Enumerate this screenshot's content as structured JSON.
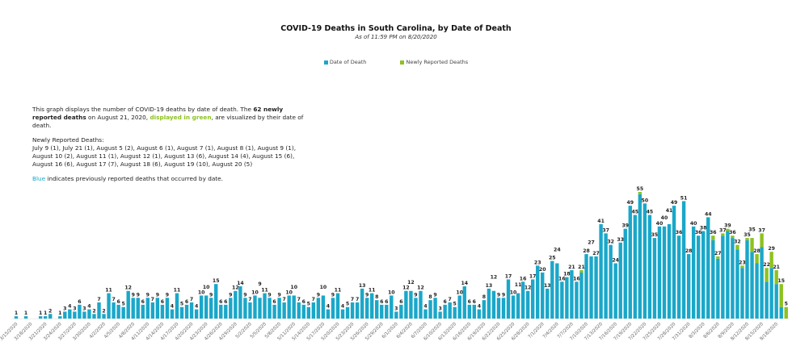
{
  "chart_data": {
    "type": "bar",
    "stacked": true,
    "title": "COVID-19 Deaths in South Carolina, by Date of Death",
    "subtitle": "As of 11:59 PM on 8/20/2020",
    "legend_position": "top",
    "grid": false,
    "ylim": [
      0,
      60
    ],
    "colors": {
      "Date of Death": "#1aa7c9",
      "Newly Reported Deaths": "#8dc21f"
    },
    "categories": [
      "3/15/2020",
      "3/16/2020",
      "3/17/2020",
      "3/18/2020",
      "3/19/2020",
      "3/20/2020",
      "3/21/2020",
      "3/22/2020",
      "3/23/2020",
      "3/24/2020",
      "3/25/2020",
      "3/26/2020",
      "3/27/2020",
      "3/28/2020",
      "3/29/2020",
      "3/30/2020",
      "3/31/2020",
      "4/1/2020",
      "4/2/2020",
      "4/3/2020",
      "4/4/2020",
      "4/5/2020",
      "4/6/2020",
      "4/7/2020",
      "4/8/2020",
      "4/9/2020",
      "4/10/2020",
      "4/11/2020",
      "4/12/2020",
      "4/13/2020",
      "4/14/2020",
      "4/15/2020",
      "4/16/2020",
      "4/17/2020",
      "4/18/2020",
      "4/19/2020",
      "4/20/2020",
      "4/21/2020",
      "4/22/2020",
      "4/23/2020",
      "4/24/2020",
      "4/25/2020",
      "4/26/2020",
      "4/27/2020",
      "4/28/2020",
      "4/29/2020",
      "4/30/2020",
      "5/1/2020",
      "5/2/2020",
      "5/3/2020",
      "5/4/2020",
      "5/5/2020",
      "5/6/2020",
      "5/7/2020",
      "5/8/2020",
      "5/9/2020",
      "5/10/2020",
      "5/11/2020",
      "5/12/2020",
      "5/13/2020",
      "5/14/2020",
      "5/15/2020",
      "5/16/2020",
      "5/17/2020",
      "5/18/2020",
      "5/19/2020",
      "5/20/2020",
      "5/21/2020",
      "5/22/2020",
      "5/23/2020",
      "5/24/2020",
      "5/25/2020",
      "5/26/2020",
      "5/27/2020",
      "5/28/2020",
      "5/29/2020",
      "5/30/2020",
      "5/31/2020",
      "6/1/2020",
      "6/2/2020",
      "6/3/2020",
      "6/4/2020",
      "6/5/2020",
      "6/6/2020",
      "6/7/2020",
      "6/8/2020",
      "6/9/2020",
      "6/10/2020",
      "6/11/2020",
      "6/12/2020",
      "6/13/2020",
      "6/14/2020",
      "6/15/2020",
      "6/16/2020",
      "6/17/2020",
      "6/18/2020",
      "6/19/2020",
      "6/20/2020",
      "6/21/2020",
      "6/22/2020",
      "6/23/2020",
      "6/24/2020",
      "6/25/2020",
      "6/26/2020",
      "6/27/2020",
      "6/28/2020",
      "6/29/2020",
      "6/30/2020",
      "7/1/2020",
      "7/2/2020",
      "7/3/2020",
      "7/4/2020",
      "7/5/2020",
      "7/6/2020",
      "7/7/2020",
      "7/8/2020",
      "7/9/2020",
      "7/10/2020",
      "7/11/2020",
      "7/12/2020",
      "7/13/2020",
      "7/14/2020",
      "7/15/2020",
      "7/16/2020",
      "7/17/2020",
      "7/18/2020",
      "7/19/2020",
      "7/20/2020",
      "7/21/2020",
      "7/22/2020",
      "7/23/2020",
      "7/24/2020",
      "7/25/2020",
      "7/26/2020",
      "7/27/2020",
      "7/28/2020",
      "7/29/2020",
      "7/30/2020",
      "7/31/2020",
      "8/1/2020",
      "8/2/2020",
      "8/3/2020",
      "8/4/2020",
      "8/5/2020",
      "8/6/2020",
      "8/7/2020",
      "8/8/2020",
      "8/9/2020",
      "8/10/2020",
      "8/11/2020",
      "8/12/2020",
      "8/13/2020",
      "8/14/2020",
      "8/15/2020",
      "8/16/2020",
      "8/17/2020",
      "8/18/2020",
      "8/19/2020",
      "8/20/2020"
    ],
    "series": [
      {
        "name": "Date of Death",
        "values": [
          1,
          0,
          1,
          0,
          0,
          1,
          1,
          2,
          0,
          1,
          3,
          4,
          3,
          6,
          3,
          4,
          2,
          7,
          2,
          11,
          7,
          6,
          5,
          12,
          9,
          9,
          6,
          9,
          7,
          9,
          6,
          9,
          4,
          11,
          5,
          6,
          7,
          4,
          10,
          10,
          9,
          15,
          6,
          6,
          9,
          12,
          14,
          9,
          7,
          10,
          9,
          11,
          9,
          6,
          9,
          7,
          10,
          10,
          7,
          6,
          5,
          7,
          9,
          10,
          4,
          9,
          11,
          4,
          5,
          7,
          7,
          13,
          9,
          11,
          8,
          6,
          6,
          10,
          3,
          6,
          12,
          12,
          9,
          12,
          4,
          8,
          9,
          3,
          6,
          7,
          5,
          10,
          14,
          6,
          6,
          4,
          8,
          13,
          12,
          9,
          9,
          17,
          10,
          11,
          16,
          12,
          17,
          23,
          20,
          13,
          25,
          24,
          16,
          18,
          21,
          16,
          20,
          28,
          27,
          27,
          41,
          37,
          32,
          24,
          33,
          39,
          49,
          45,
          54,
          50,
          45,
          35,
          40,
          40,
          41,
          49,
          36,
          51,
          28,
          40,
          36,
          38,
          44,
          34,
          26,
          36,
          38,
          35,
          30,
          22,
          34,
          29,
          24,
          31,
          16,
          22,
          15,
          5,
          0
        ]
      },
      {
        "name": "Newly Reported Deaths",
        "values": [
          0,
          0,
          0,
          0,
          0,
          0,
          0,
          0,
          0,
          0,
          0,
          0,
          0,
          0,
          0,
          0,
          0,
          0,
          0,
          0,
          0,
          0,
          0,
          0,
          0,
          0,
          0,
          0,
          0,
          0,
          0,
          0,
          0,
          0,
          0,
          0,
          0,
          0,
          0,
          0,
          0,
          0,
          0,
          0,
          0,
          0,
          0,
          0,
          0,
          0,
          0,
          0,
          0,
          0,
          0,
          0,
          0,
          0,
          0,
          0,
          0,
          0,
          0,
          0,
          0,
          0,
          0,
          0,
          0,
          0,
          0,
          0,
          0,
          0,
          0,
          0,
          0,
          0,
          0,
          0,
          0,
          0,
          0,
          0,
          0,
          0,
          0,
          0,
          0,
          0,
          0,
          0,
          0,
          0,
          0,
          0,
          0,
          0,
          0,
          0,
          0,
          0,
          0,
          0,
          0,
          0,
          0,
          0,
          0,
          0,
          0,
          0,
          0,
          0,
          0,
          0,
          1,
          0,
          0,
          0,
          0,
          0,
          0,
          0,
          0,
          0,
          0,
          0,
          1,
          0,
          0,
          0,
          0,
          0,
          0,
          0,
          0,
          0,
          0,
          0,
          0,
          0,
          0,
          2,
          1,
          1,
          1,
          1,
          2,
          1,
          1,
          6,
          4,
          6,
          6,
          7,
          6,
          10,
          5
        ]
      }
    ],
    "data_labels": [
      1,
      0,
      1,
      0,
      0,
      1,
      1,
      2,
      0,
      1,
      3,
      4,
      3,
      6,
      3,
      4,
      2,
      7,
      2,
      11,
      7,
      6,
      5,
      12,
      9,
      9,
      6,
      9,
      7,
      9,
      6,
      9,
      4,
      11,
      5,
      6,
      7,
      4,
      10,
      10,
      9,
      15,
      6,
      6,
      9,
      12,
      14,
      9,
      7,
      10,
      9,
      11,
      9,
      6,
      9,
      7,
      10,
      10,
      7,
      6,
      5,
      7,
      9,
      10,
      4,
      9,
      11,
      4,
      5,
      7,
      7,
      13,
      9,
      11,
      8,
      6,
      6,
      10,
      3,
      6,
      12,
      12,
      9,
      12,
      4,
      8,
      9,
      3,
      6,
      7,
      5,
      10,
      14,
      6,
      6,
      4,
      8,
      13,
      12,
      9,
      9,
      17,
      10,
      11,
      16,
      12,
      17,
      23,
      20,
      13,
      25,
      24,
      16,
      18,
      21,
      16,
      21,
      28,
      27,
      27,
      41,
      37,
      32,
      24,
      33,
      39,
      49,
      45,
      55,
      50,
      45,
      35,
      40,
      40,
      41,
      49,
      36,
      51,
      28,
      40,
      36,
      38,
      44,
      36,
      27,
      37,
      39,
      36,
      32,
      23,
      35,
      35,
      28,
      37,
      22,
      29,
      21,
      15,
      5
    ],
    "xlabel": "",
    "ylabel": ""
  },
  "description": {
    "p1_a": "This graph displays the number of COVID-19 deaths by date of death. The ",
    "p1_bold": "62 newly reported deaths",
    "p1_b": " on August 21, 2020, ",
    "p1_green": "displayed in green",
    "p1_c": ", are visualized by their date of death.",
    "new_heading": "Newly Reported Deaths:",
    "new_list": "July 9 (1), July 21 (1), August 5 (2), August 6 (1), August 7 (1), August 8 (1), August 9 (1), August 10 (2), August 11 (1), August 12 (1), August 13 (6), August 14 (4), August 15 (6), August 16 (6), August 17 (7), August 18 (6), August 19 (10), August 20 (5)",
    "p3_blue": "Blue",
    "p3_rest": " indicates previously reported deaths that occurred by date."
  }
}
